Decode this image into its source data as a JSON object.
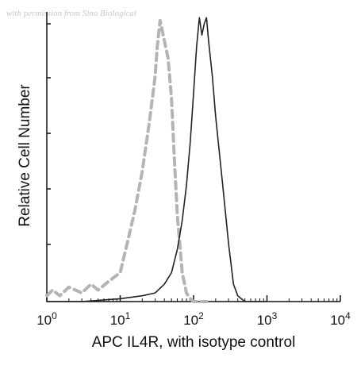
{
  "watermark": "with permission from Sino Biological",
  "chart_data": {
    "type": "line",
    "title": "",
    "xlabel": "APC IL4R, with isotype control",
    "ylabel": "Relative Cell Number",
    "x_scale": "log",
    "xlim": [
      1,
      10000
    ],
    "ylim": [
      0,
      100
    ],
    "x_ticks": [
      {
        "value": 1,
        "base": "10",
        "exp": "0"
      },
      {
        "value": 10,
        "base": "10",
        "exp": "1"
      },
      {
        "value": 100,
        "base": "10",
        "exp": "2"
      },
      {
        "value": 1000,
        "base": "10",
        "exp": "3"
      },
      {
        "value": 10000,
        "base": "10",
        "exp": "4"
      }
    ],
    "grid": false,
    "legend": "none",
    "series": [
      {
        "style": "dashed",
        "color": "#b4b4b4",
        "x": [
          1,
          1.2,
          1.5,
          2,
          3,
          4,
          5,
          7,
          10,
          13,
          16,
          20,
          25,
          28,
          30,
          32,
          35,
          40,
          45,
          50,
          55,
          60,
          70,
          80,
          90,
          100,
          120,
          150
        ],
        "y": [
          2,
          4,
          2,
          5,
          3,
          6,
          4,
          7,
          10,
          22,
          32,
          45,
          62,
          72,
          78,
          88,
          97,
          90,
          84,
          70,
          48,
          30,
          10,
          3,
          1,
          0,
          0,
          0
        ]
      },
      {
        "style": "solid",
        "color": "#222222",
        "x": [
          1,
          3,
          10,
          20,
          30,
          40,
          50,
          60,
          70,
          80,
          90,
          100,
          110,
          120,
          130,
          140,
          150,
          160,
          180,
          200,
          250,
          300,
          350,
          400,
          500,
          600,
          1000
        ],
        "y": [
          0,
          0,
          1,
          2,
          3,
          6,
          10,
          18,
          28,
          40,
          55,
          72,
          88,
          98,
          92,
          96,
          98,
          90,
          78,
          64,
          40,
          20,
          6,
          2,
          0,
          0,
          0
        ]
      }
    ]
  }
}
